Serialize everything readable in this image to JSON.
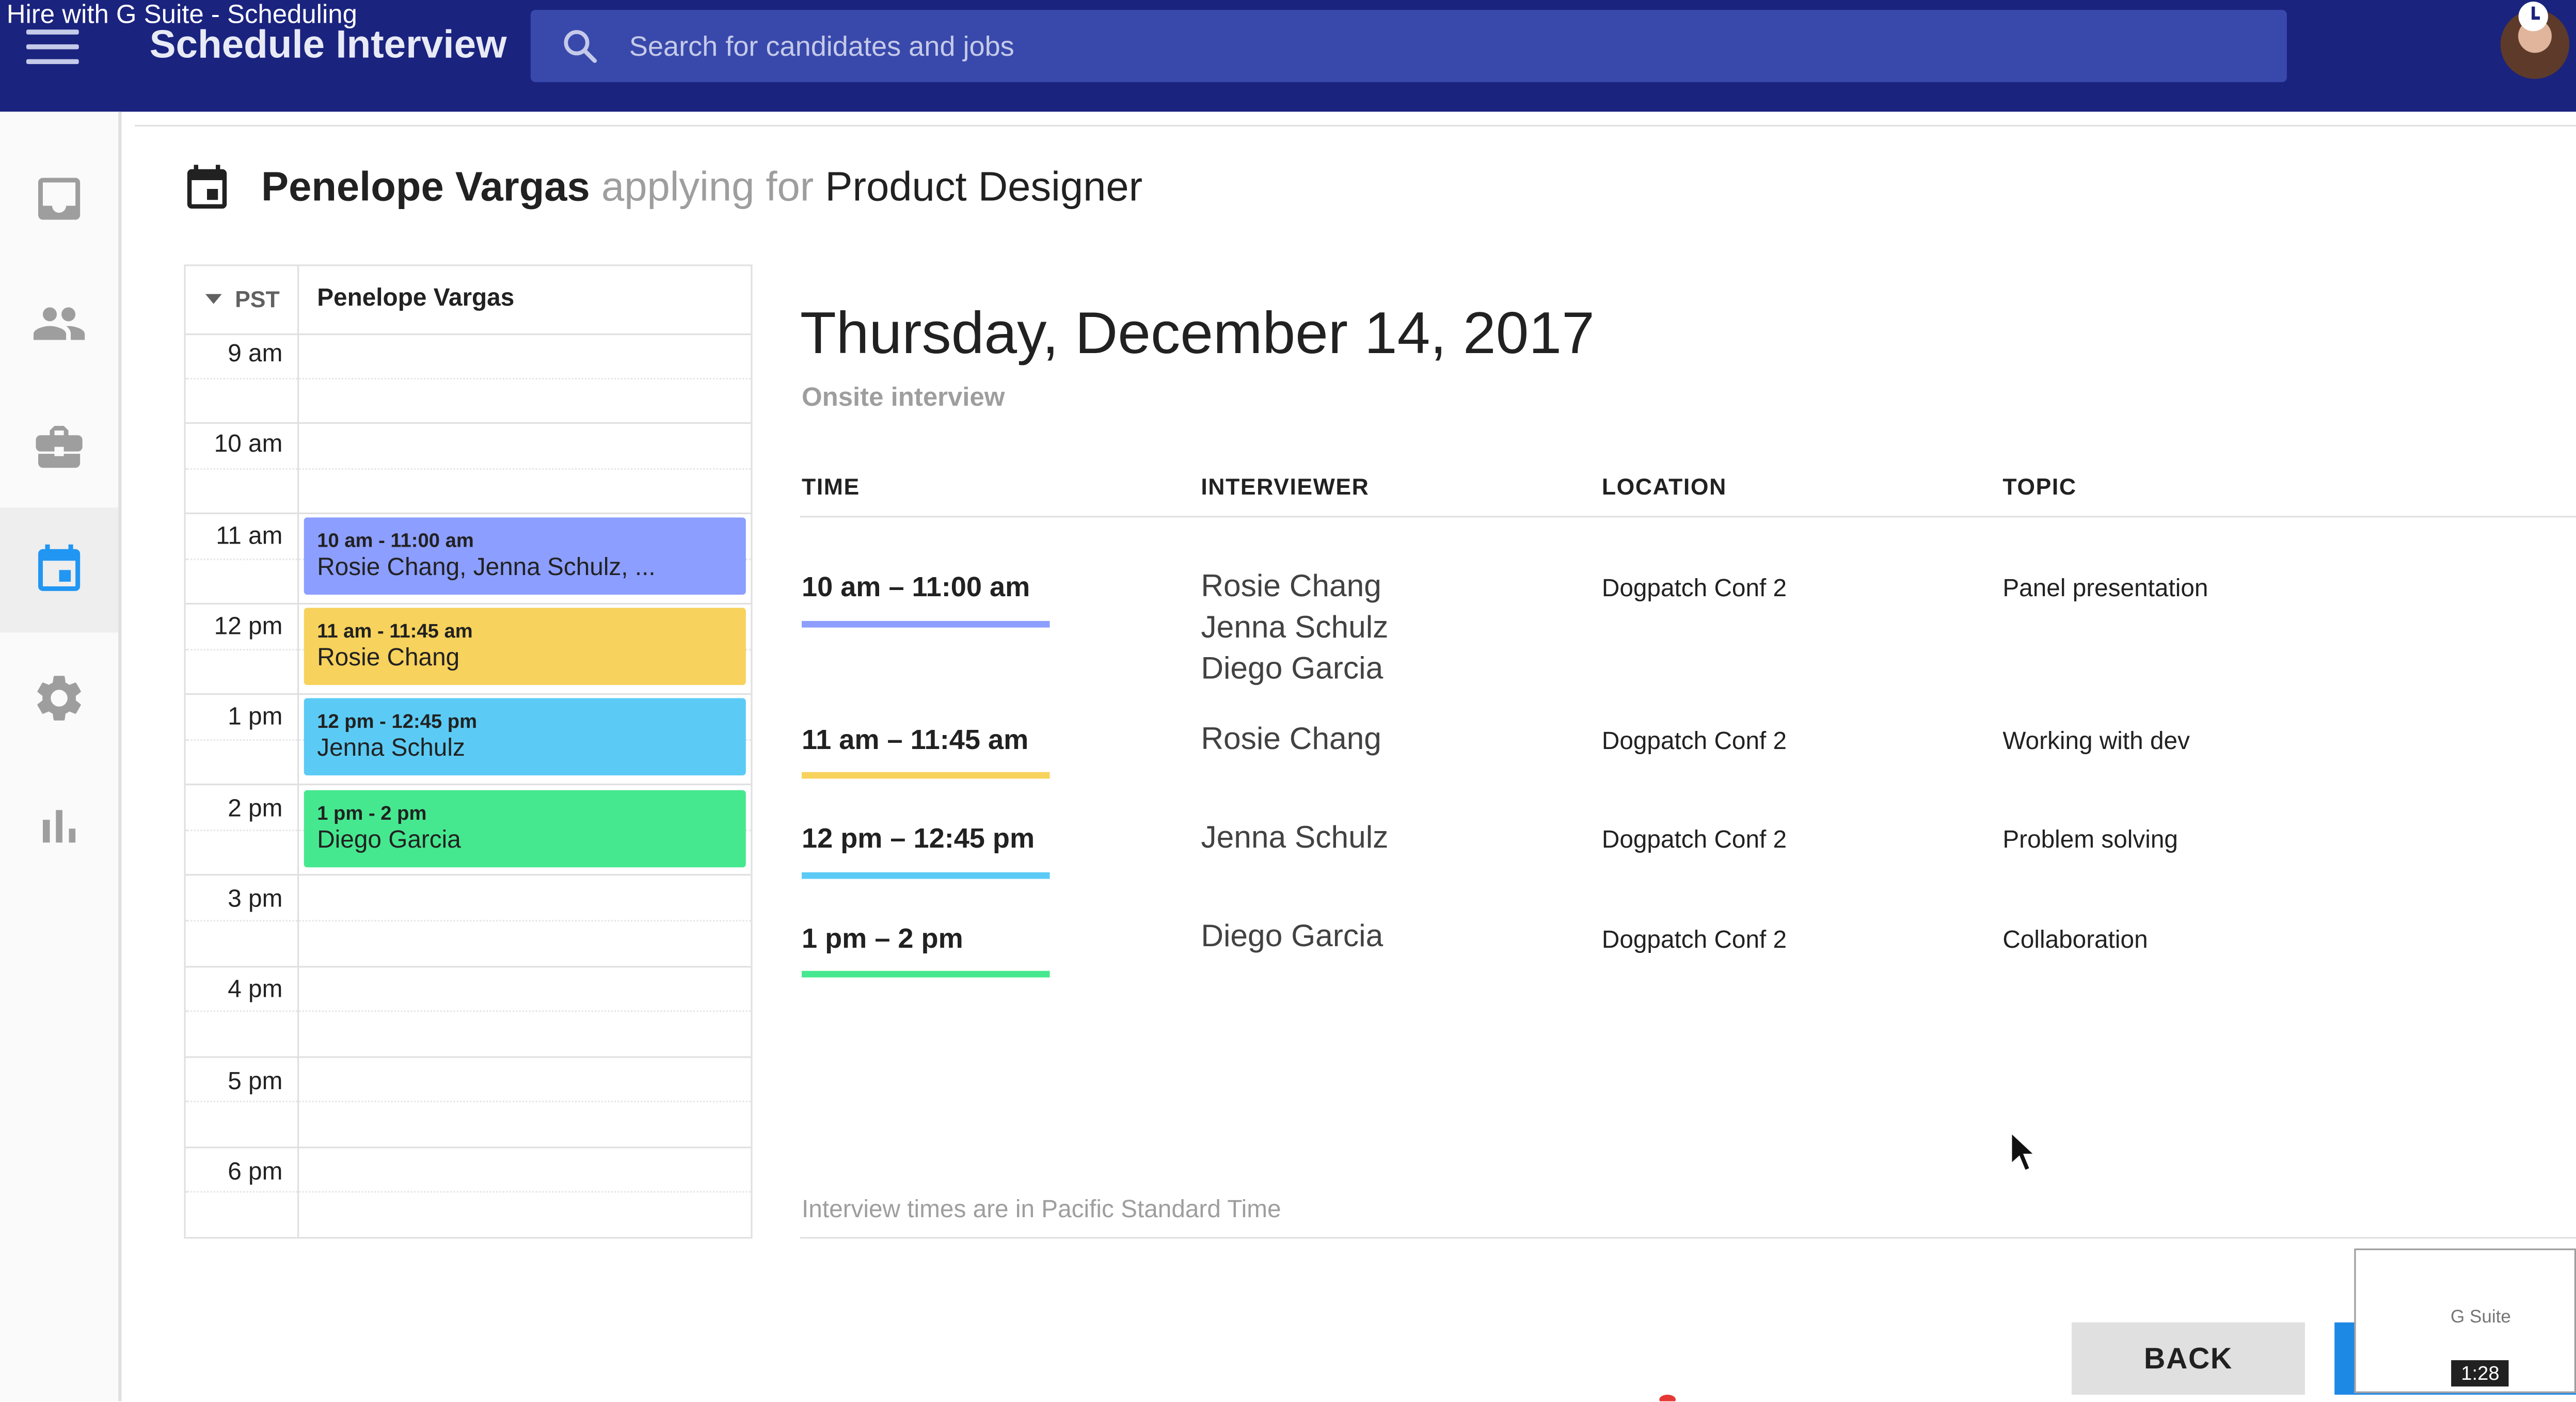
{
  "video": {
    "title": "Hire with G Suite - Scheduling",
    "time": "1:28",
    "thumb_label": "G Suite"
  },
  "app": {
    "title": "Schedule Interview"
  },
  "search": {
    "placeholder": "Search for candidates and jobs"
  },
  "header": {
    "candidate": "Penelope Vargas",
    "applying": "applying for",
    "job": "Product Designer"
  },
  "calendar": {
    "timezone": "PST",
    "column": "Penelope Vargas",
    "hours": [
      "9 am",
      "10 am",
      "11 am",
      "12 pm",
      "1 pm",
      "2 pm",
      "3 pm",
      "4 pm",
      "5 pm",
      "6 pm"
    ],
    "events": [
      {
        "time": "10 am - 11:00 am",
        "people": "Rosie Chang, Jenna Schulz, ...",
        "color": "#8c9eff"
      },
      {
        "time": "11 am - 11:45 am",
        "people": "Rosie Chang",
        "color": "#f7d25c"
      },
      {
        "time": "12 pm - 12:45 pm",
        "people": "Jenna Schulz",
        "color": "#5bcbf5"
      },
      {
        "time": "1 pm - 2 pm",
        "people": "Diego Garcia",
        "color": "#46e88f"
      }
    ]
  },
  "details": {
    "date": "Thursday, December 14, 2017",
    "type": "Onsite interview",
    "columns": {
      "time": "TIME",
      "interviewer": "INTERVIEWER",
      "location": "LOCATION",
      "topic": "TOPIC"
    },
    "rows": [
      {
        "time": "10 am – 11:00 am",
        "interviewers": [
          "Rosie Chang",
          "Jenna Schulz",
          "Diego Garcia"
        ],
        "location": "Dogpatch Conf 2",
        "topic": "Panel presentation",
        "color": "#8c9eff"
      },
      {
        "time": "11 am – 11:45 am",
        "interviewers": [
          "Rosie Chang"
        ],
        "location": "Dogpatch Conf 2",
        "topic": "Working with dev",
        "color": "#f7d25c"
      },
      {
        "time": "12 pm – 12:45 pm",
        "interviewers": [
          "Jenna Schulz"
        ],
        "location": "Dogpatch Conf 2",
        "topic": "Problem solving",
        "color": "#5bcbf5"
      },
      {
        "time": "1 pm – 2 pm",
        "interviewers": [
          "Diego Garcia"
        ],
        "location": "Dogpatch Conf 2",
        "topic": "Collaboration",
        "color": "#46e88f"
      }
    ],
    "footnote": "Interview times are in Pacific Standard Time"
  },
  "sidebar": {
    "items": [
      {
        "icon": "inbox-icon"
      },
      {
        "icon": "people-icon"
      },
      {
        "icon": "briefcase-icon"
      },
      {
        "icon": "calendar-icon",
        "active": true
      },
      {
        "icon": "gear-icon"
      },
      {
        "icon": "bar-chart-icon"
      }
    ],
    "active_color": "#2196f3",
    "icon_color": "#9e9e9e"
  },
  "footer": {
    "back_label": "BACK"
  }
}
